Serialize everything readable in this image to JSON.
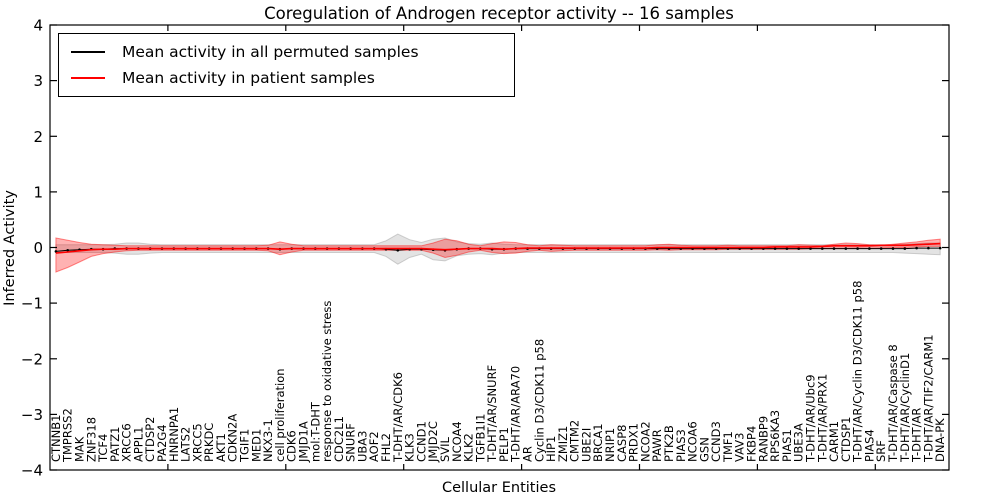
{
  "chart_data": {
    "type": "line",
    "title": "Coregulation of Androgen receptor activity -- 16 samples",
    "xlabel": "Cellular Entities",
    "ylabel": "Inferred Activity",
    "ylim": [
      -4,
      4
    ],
    "yticks": [
      -4,
      -3,
      -2,
      -1,
      0,
      1,
      2,
      3,
      4
    ],
    "xtick_positions": [
      10,
      20,
      30,
      40,
      50,
      60,
      70
    ],
    "grid": false,
    "legend_position": "upper left",
    "categories": [
      "CTNNB1",
      "TMPRSS2",
      "MAK",
      "ZNF318",
      "TCF4",
      "PATZ1",
      "XRCC6",
      "APPL1",
      "CTDSP2",
      "PA2G4",
      "HNRNPA1",
      "LATS2",
      "XRCC5",
      "PRKDC",
      "AKT1",
      "CDKN2A",
      "TGIF1",
      "MED1",
      "NKX3-1",
      "cell proliferation",
      "CDK6",
      "JMJD1A",
      "mol:T-DHT",
      "response to oxidative stress",
      "CDC2L1",
      "SNURF",
      "UBA3",
      "AOF2",
      "FHL2",
      "T-DHT/AR/CDK6",
      "KLK3",
      "CCND1",
      "JMJD2C",
      "SVIL",
      "NCOA4",
      "KLK2",
      "TGFB1I1",
      "T-DHT/AR/SNURF",
      "PELP1",
      "T-DHT/AR/ARA70",
      "AR",
      "Cyclin D3/CDK11 p58",
      "HIP1",
      "ZMIZ1",
      "CMTM2",
      "UBE2I",
      "BRCA1",
      "NRIP1",
      "CASP8",
      "PRDX1",
      "NCOA2",
      "PAWR",
      "PTK2B",
      "PIAS3",
      "NCOA6",
      "GSN",
      "CCND3",
      "TMF1",
      "VAV3",
      "FKBP4",
      "RANBP9",
      "RPS6KA3",
      "PIAS1",
      "UBE3A",
      "T-DHT/AR/Ubc9",
      "T-DHT/AR/PRX1",
      "CARM1",
      "CTDSP1",
      "T-DHT/AR/Cyclin D3/CDK11 p58",
      "PIAS4",
      "SRF",
      "T-DHT/AR/Caspase 8",
      "T-DHT/AR/CyclinD1",
      "T-DHT/AR",
      "T-DHT/AR/TIF2/CARM1",
      "DNA-PK"
    ],
    "series": [
      {
        "name": "Mean activity in all permuted samples",
        "color": "#000000",
        "style": "line_with_dot_markers",
        "values": [
          -0.07,
          -0.05,
          -0.04,
          -0.03,
          -0.03,
          -0.02,
          -0.02,
          -0.02,
          -0.02,
          -0.02,
          -0.02,
          -0.02,
          -0.02,
          -0.02,
          -0.02,
          -0.02,
          -0.02,
          -0.02,
          -0.02,
          -0.03,
          -0.02,
          -0.02,
          -0.02,
          -0.02,
          -0.02,
          -0.02,
          -0.02,
          -0.02,
          -0.03,
          -0.05,
          -0.03,
          -0.03,
          -0.04,
          -0.05,
          -0.03,
          -0.02,
          -0.02,
          -0.03,
          -0.03,
          -0.02,
          -0.02,
          -0.02,
          -0.02,
          -0.02,
          -0.02,
          -0.02,
          -0.02,
          -0.02,
          -0.02,
          -0.02,
          -0.02,
          -0.02,
          -0.02,
          -0.02,
          -0.02,
          -0.02,
          -0.02,
          -0.02,
          -0.02,
          -0.02,
          -0.02,
          -0.02,
          -0.02,
          -0.02,
          -0.02,
          -0.02,
          -0.02,
          -0.02,
          -0.02,
          -0.02,
          -0.02,
          -0.02,
          -0.02,
          -0.01,
          -0.01,
          -0.01
        ]
      },
      {
        "name": "Mean activity in patient samples",
        "color": "#ff0000",
        "style": "solid_line",
        "values": [
          -0.1,
          -0.08,
          -0.06,
          -0.04,
          -0.03,
          -0.03,
          -0.02,
          -0.02,
          -0.02,
          -0.02,
          -0.02,
          -0.02,
          -0.02,
          -0.02,
          -0.02,
          -0.02,
          -0.02,
          -0.02,
          -0.02,
          -0.03,
          -0.02,
          -0.02,
          -0.02,
          -0.02,
          -0.02,
          -0.02,
          -0.02,
          -0.02,
          -0.02,
          -0.02,
          -0.02,
          -0.02,
          -0.03,
          -0.04,
          -0.03,
          -0.02,
          -0.02,
          -0.02,
          -0.03,
          -0.02,
          -0.01,
          -0.01,
          -0.01,
          -0.01,
          -0.01,
          -0.01,
          -0.01,
          -0.01,
          -0.01,
          -0.01,
          -0.01,
          0.0,
          0.0,
          0.0,
          0.0,
          0.0,
          0.0,
          0.0,
          0.0,
          0.0,
          0.0,
          0.01,
          0.01,
          0.01,
          0.01,
          0.02,
          0.03,
          0.03,
          0.03,
          0.03,
          0.04,
          0.04,
          0.04,
          0.05,
          0.06,
          0.07
        ]
      }
    ],
    "bands": [
      {
        "name": "permuted samples spread",
        "color": "#999999",
        "opacity": 0.28,
        "upper": [
          0.05,
          0.05,
          0.05,
          0.05,
          0.05,
          0.06,
          0.08,
          0.08,
          0.06,
          0.05,
          0.05,
          0.05,
          0.05,
          0.05,
          0.05,
          0.05,
          0.05,
          0.05,
          0.05,
          0.05,
          0.05,
          0.05,
          0.05,
          0.05,
          0.05,
          0.05,
          0.05,
          0.05,
          0.12,
          0.24,
          0.14,
          0.09,
          0.15,
          0.17,
          0.1,
          0.07,
          0.06,
          0.08,
          0.06,
          0.05,
          0.05,
          0.05,
          0.05,
          0.05,
          0.05,
          0.05,
          0.05,
          0.05,
          0.05,
          0.05,
          0.05,
          0.05,
          0.05,
          0.05,
          0.05,
          0.05,
          0.05,
          0.05,
          0.05,
          0.05,
          0.05,
          0.05,
          0.05,
          0.05,
          0.05,
          0.05,
          0.05,
          0.05,
          0.05,
          0.05,
          0.05,
          0.05,
          0.06,
          0.07,
          0.08,
          0.08
        ],
        "lower": [
          -0.09,
          -0.09,
          -0.09,
          -0.09,
          -0.09,
          -0.1,
          -0.12,
          -0.12,
          -0.1,
          -0.09,
          -0.09,
          -0.09,
          -0.09,
          -0.09,
          -0.09,
          -0.09,
          -0.09,
          -0.09,
          -0.09,
          -0.09,
          -0.09,
          -0.09,
          -0.09,
          -0.09,
          -0.09,
          -0.09,
          -0.09,
          -0.09,
          -0.16,
          -0.3,
          -0.18,
          -0.12,
          -0.22,
          -0.24,
          -0.15,
          -0.12,
          -0.11,
          -0.13,
          -0.1,
          -0.09,
          -0.09,
          -0.09,
          -0.09,
          -0.09,
          -0.09,
          -0.09,
          -0.09,
          -0.09,
          -0.09,
          -0.09,
          -0.09,
          -0.09,
          -0.09,
          -0.09,
          -0.09,
          -0.09,
          -0.09,
          -0.09,
          -0.09,
          -0.09,
          -0.09,
          -0.09,
          -0.09,
          -0.09,
          -0.09,
          -0.09,
          -0.09,
          -0.09,
          -0.09,
          -0.09,
          -0.09,
          -0.09,
          -0.1,
          -0.11,
          -0.12,
          -0.13
        ]
      },
      {
        "name": "patient samples spread",
        "color": "#ff0000",
        "opacity": 0.3,
        "upper": [
          0.17,
          0.13,
          0.09,
          0.06,
          0.05,
          0.04,
          0.03,
          0.03,
          0.03,
          0.03,
          0.03,
          0.03,
          0.03,
          0.03,
          0.03,
          0.03,
          0.03,
          0.03,
          0.04,
          0.1,
          0.06,
          0.03,
          0.03,
          0.03,
          0.03,
          0.03,
          0.03,
          0.03,
          0.03,
          0.03,
          0.03,
          0.03,
          0.08,
          0.15,
          0.12,
          0.06,
          0.03,
          0.07,
          0.1,
          0.09,
          0.05,
          0.03,
          0.05,
          0.04,
          0.03,
          0.03,
          0.03,
          0.03,
          0.03,
          0.03,
          0.03,
          0.05,
          0.06,
          0.04,
          0.03,
          0.03,
          0.03,
          0.04,
          0.03,
          0.03,
          0.03,
          0.03,
          0.03,
          0.05,
          0.04,
          0.03,
          0.06,
          0.08,
          0.07,
          0.05,
          0.04,
          0.06,
          0.08,
          0.1,
          0.13,
          0.15
        ],
        "lower": [
          -0.44,
          -0.36,
          -0.26,
          -0.16,
          -0.11,
          -0.08,
          -0.06,
          -0.05,
          -0.05,
          -0.05,
          -0.05,
          -0.05,
          -0.05,
          -0.05,
          -0.05,
          -0.05,
          -0.05,
          -0.05,
          -0.06,
          -0.13,
          -0.08,
          -0.05,
          -0.05,
          -0.05,
          -0.05,
          -0.05,
          -0.05,
          -0.05,
          -0.05,
          -0.05,
          -0.05,
          -0.05,
          -0.1,
          -0.18,
          -0.14,
          -0.08,
          -0.05,
          -0.09,
          -0.11,
          -0.1,
          -0.07,
          -0.05,
          -0.07,
          -0.06,
          -0.05,
          -0.05,
          -0.05,
          -0.05,
          -0.05,
          -0.05,
          -0.05,
          -0.04,
          -0.05,
          -0.04,
          -0.04,
          -0.04,
          -0.04,
          -0.03,
          -0.03,
          -0.03,
          -0.03,
          -0.03,
          -0.03,
          -0.03,
          -0.02,
          -0.02,
          -0.02,
          -0.02,
          -0.01,
          -0.02,
          -0.01,
          0.0,
          0.0,
          0.01,
          0.02,
          0.02
        ]
      }
    ]
  }
}
